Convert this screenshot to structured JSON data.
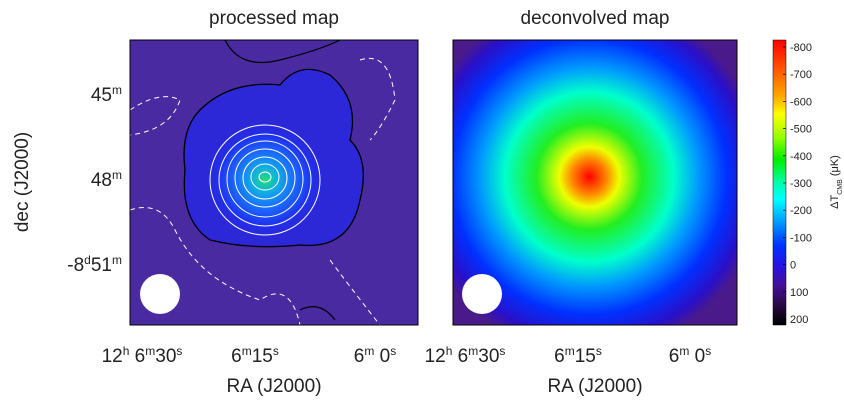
{
  "figure": {
    "panels": [
      {
        "title": "processed map"
      },
      {
        "title": "deconvolved map"
      }
    ],
    "x_axis_label": "RA (J2000)",
    "y_axis_label": "dec (J2000)",
    "x_ticks": [
      [
        "12",
        "h",
        " 6",
        "m",
        "30",
        "s"
      ],
      [
        "6",
        "m",
        "15",
        "s"
      ],
      [
        "6",
        "m",
        " 0",
        "s"
      ]
    ],
    "y_ticks": [
      [
        "45",
        "m"
      ],
      [
        "48",
        "m"
      ],
      [
        "-8",
        "d",
        "51",
        "m"
      ]
    ],
    "colorbar": {
      "label": [
        "ΔT",
        "CMB",
        " (μK)"
      ],
      "ticks": [
        -800,
        -700,
        -600,
        -500,
        -400,
        -300,
        -200,
        -100,
        0,
        100,
        200
      ]
    }
  }
}
